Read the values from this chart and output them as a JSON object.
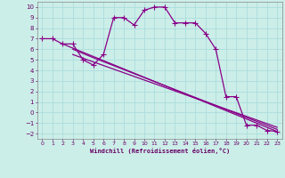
{
  "bg_color": "#cceee8",
  "grid_color": "#aadddd",
  "line_color": "#880088",
  "marker": "+",
  "markersize": 4,
  "linewidth": 0.9,
  "xlabel": "Windchill (Refroidissement éolien,°C)",
  "xlabel_color": "#660066",
  "tick_color": "#660066",
  "xlim": [
    -0.5,
    23.5
  ],
  "ylim": [
    -2.5,
    10.5
  ],
  "xticks": [
    0,
    1,
    2,
    3,
    4,
    5,
    6,
    7,
    8,
    9,
    10,
    11,
    12,
    13,
    14,
    15,
    16,
    17,
    18,
    19,
    20,
    21,
    22,
    23
  ],
  "yticks": [
    -2,
    -1,
    0,
    1,
    2,
    3,
    4,
    5,
    6,
    7,
    8,
    9,
    10
  ],
  "series": [
    {
      "x": [
        0,
        1,
        2,
        3,
        4,
        5,
        6,
        7,
        8,
        9,
        10,
        11,
        12,
        13,
        14,
        15,
        16,
        17,
        18,
        19,
        20,
        21,
        22,
        23
      ],
      "y": [
        7,
        7,
        6.5,
        6.5,
        5.0,
        4.5,
        5.5,
        9.0,
        9.0,
        8.3,
        9.7,
        10.0,
        10.0,
        8.5,
        8.5,
        8.5,
        7.5,
        6.0,
        1.5,
        1.5,
        -1.2,
        -1.2,
        -1.7,
        -1.8
      ],
      "with_markers": true
    },
    {
      "x": [
        2,
        23
      ],
      "y": [
        6.5,
        -1.8
      ],
      "with_markers": false
    },
    {
      "x": [
        3,
        5,
        23
      ],
      "y": [
        6.0,
        5.2,
        -1.6
      ],
      "with_markers": false
    },
    {
      "x": [
        3,
        5,
        23
      ],
      "y": [
        5.5,
        4.8,
        -1.4
      ],
      "with_markers": false
    }
  ]
}
